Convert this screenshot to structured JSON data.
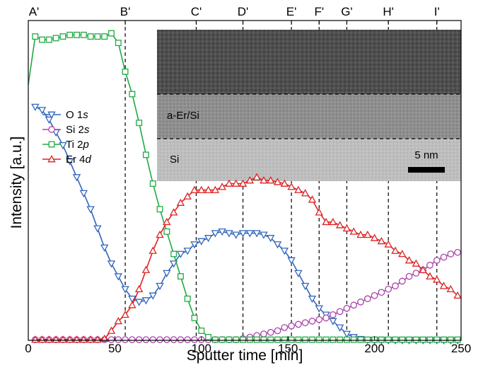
{
  "chart_data": {
    "type": "line",
    "xlabel": "Sputter time [min]",
    "ylabel": "Intensity [a.u.]",
    "xlim": [
      0,
      250
    ],
    "ylim": [
      0,
      1
    ],
    "x_ticks": [
      0,
      50,
      100,
      150,
      200,
      250
    ],
    "legend_position": "left",
    "grid": false,
    "top_markers": [
      {
        "label": "A'",
        "x": 0,
        "dashed": false
      },
      {
        "label": "B'",
        "x": 56,
        "dashed": true
      },
      {
        "label": "C'",
        "x": 97,
        "dashed": true
      },
      {
        "label": "D'",
        "x": 124,
        "dashed": true
      },
      {
        "label": "E'",
        "x": 152,
        "dashed": true
      },
      {
        "label": "F'",
        "x": 168,
        "dashed": true
      },
      {
        "label": "G'",
        "x": 184,
        "dashed": true
      },
      {
        "label": "H'",
        "x": 208,
        "dashed": true
      },
      {
        "label": "I'",
        "x": 236,
        "dashed": true
      }
    ],
    "series": [
      {
        "label_main": "O 1",
        "label_sub": "s",
        "color": "#3366bb",
        "marker": "triangle-down",
        "points": [
          [
            4,
            0.73
          ],
          [
            8,
            0.72
          ],
          [
            12,
            0.69
          ],
          [
            16,
            0.65
          ],
          [
            20,
            0.61
          ],
          [
            24,
            0.56
          ],
          [
            28,
            0.51
          ],
          [
            32,
            0.46
          ],
          [
            36,
            0.41
          ],
          [
            40,
            0.35
          ],
          [
            44,
            0.29
          ],
          [
            48,
            0.24
          ],
          [
            52,
            0.2
          ],
          [
            56,
            0.16
          ],
          [
            60,
            0.13
          ],
          [
            64,
            0.12
          ],
          [
            68,
            0.125
          ],
          [
            72,
            0.14
          ],
          [
            76,
            0.17
          ],
          [
            80,
            0.21
          ],
          [
            84,
            0.24
          ],
          [
            88,
            0.27
          ],
          [
            92,
            0.28
          ],
          [
            96,
            0.3
          ],
          [
            100,
            0.31
          ],
          [
            104,
            0.32
          ],
          [
            108,
            0.335
          ],
          [
            112,
            0.34
          ],
          [
            116,
            0.335
          ],
          [
            120,
            0.33
          ],
          [
            124,
            0.335
          ],
          [
            128,
            0.335
          ],
          [
            132,
            0.335
          ],
          [
            136,
            0.33
          ],
          [
            140,
            0.32
          ],
          [
            144,
            0.3
          ],
          [
            148,
            0.28
          ],
          [
            152,
            0.25
          ],
          [
            156,
            0.21
          ],
          [
            160,
            0.17
          ],
          [
            164,
            0.13
          ],
          [
            168,
            0.1
          ],
          [
            172,
            0.08
          ],
          [
            176,
            0.06
          ],
          [
            180,
            0.04
          ],
          [
            184,
            0.02
          ],
          [
            188,
            0.01
          ],
          [
            192,
            0.004
          ],
          [
            196,
            0.001
          ],
          [
            200,
            0.0
          ],
          [
            204,
            0.0
          ],
          [
            208,
            0.0
          ],
          [
            212,
            0.0
          ],
          [
            216,
            0.0
          ],
          [
            220,
            0.0
          ],
          [
            224,
            0.0
          ],
          [
            228,
            0.0
          ],
          [
            232,
            0.0
          ],
          [
            236,
            0.0
          ],
          [
            240,
            0.0
          ],
          [
            244,
            0.0
          ],
          [
            248,
            0.0
          ]
        ]
      },
      {
        "label_main": "Si 2",
        "label_sub": "s",
        "color": "#aa44aa",
        "marker": "circle",
        "points": [
          [
            4,
            0.002
          ],
          [
            8,
            0.002
          ],
          [
            12,
            0.002
          ],
          [
            16,
            0.002
          ],
          [
            20,
            0.002
          ],
          [
            24,
            0.002
          ],
          [
            28,
            0.002
          ],
          [
            32,
            0.002
          ],
          [
            36,
            0.002
          ],
          [
            40,
            0.002
          ],
          [
            44,
            0.002
          ],
          [
            48,
            0.002
          ],
          [
            52,
            0.002
          ],
          [
            56,
            0.002
          ],
          [
            60,
            0.002
          ],
          [
            64,
            0.002
          ],
          [
            68,
            0.002
          ],
          [
            72,
            0.002
          ],
          [
            76,
            0.002
          ],
          [
            80,
            0.002
          ],
          [
            84,
            0.002
          ],
          [
            88,
            0.002
          ],
          [
            92,
            0.002
          ],
          [
            96,
            0.002
          ],
          [
            100,
            0.002
          ],
          [
            104,
            0.002
          ],
          [
            108,
            0.002
          ],
          [
            112,
            0.002
          ],
          [
            116,
            0.002
          ],
          [
            120,
            0.002
          ],
          [
            124,
            0.005
          ],
          [
            128,
            0.01
          ],
          [
            132,
            0.015
          ],
          [
            136,
            0.02
          ],
          [
            140,
            0.025
          ],
          [
            144,
            0.03
          ],
          [
            148,
            0.04
          ],
          [
            152,
            0.045
          ],
          [
            156,
            0.05
          ],
          [
            160,
            0.055
          ],
          [
            164,
            0.06
          ],
          [
            168,
            0.065
          ],
          [
            172,
            0.07
          ],
          [
            176,
            0.08
          ],
          [
            180,
            0.09
          ],
          [
            184,
            0.1
          ],
          [
            188,
            0.11
          ],
          [
            192,
            0.12
          ],
          [
            196,
            0.13
          ],
          [
            200,
            0.14
          ],
          [
            204,
            0.15
          ],
          [
            208,
            0.16
          ],
          [
            212,
            0.17
          ],
          [
            216,
            0.185
          ],
          [
            220,
            0.2
          ],
          [
            224,
            0.21
          ],
          [
            228,
            0.22
          ],
          [
            232,
            0.235
          ],
          [
            236,
            0.25
          ],
          [
            240,
            0.26
          ],
          [
            244,
            0.27
          ],
          [
            248,
            0.275
          ]
        ]
      },
      {
        "label_main": "Ti 2",
        "label_sub": "p",
        "color": "#22aa44",
        "marker": "square",
        "points": [
          [
            0,
            0.8
          ],
          [
            4,
            0.95
          ],
          [
            8,
            0.94
          ],
          [
            12,
            0.94
          ],
          [
            16,
            0.945
          ],
          [
            20,
            0.95
          ],
          [
            24,
            0.955
          ],
          [
            28,
            0.955
          ],
          [
            32,
            0.955
          ],
          [
            36,
            0.95
          ],
          [
            40,
            0.95
          ],
          [
            44,
            0.95
          ],
          [
            48,
            0.96
          ],
          [
            52,
            0.93
          ],
          [
            56,
            0.84
          ],
          [
            60,
            0.77
          ],
          [
            64,
            0.68
          ],
          [
            68,
            0.58
          ],
          [
            72,
            0.49
          ],
          [
            76,
            0.41
          ],
          [
            80,
            0.34
          ],
          [
            84,
            0.27
          ],
          [
            88,
            0.2
          ],
          [
            92,
            0.13
          ],
          [
            96,
            0.07
          ],
          [
            100,
            0.03
          ],
          [
            104,
            0.01
          ],
          [
            108,
            0.002
          ],
          [
            112,
            0.002
          ],
          [
            116,
            0.002
          ],
          [
            120,
            0.002
          ],
          [
            124,
            0.002
          ],
          [
            128,
            0.002
          ],
          [
            132,
            0.002
          ],
          [
            136,
            0.002
          ],
          [
            140,
            0.002
          ],
          [
            144,
            0.002
          ],
          [
            148,
            0.002
          ],
          [
            152,
            0.002
          ],
          [
            156,
            0.002
          ],
          [
            160,
            0.002
          ],
          [
            164,
            0.002
          ],
          [
            168,
            0.002
          ],
          [
            172,
            0.002
          ],
          [
            176,
            0.002
          ],
          [
            180,
            0.002
          ],
          [
            184,
            0.002
          ],
          [
            188,
            0.002
          ],
          [
            192,
            0.002
          ],
          [
            196,
            0.002
          ],
          [
            200,
            0.002
          ],
          [
            204,
            0.002
          ],
          [
            208,
            0.002
          ],
          [
            212,
            0.002
          ],
          [
            216,
            0.002
          ],
          [
            220,
            0.002
          ],
          [
            224,
            0.002
          ],
          [
            228,
            0.002
          ],
          [
            232,
            0.002
          ],
          [
            236,
            0.002
          ],
          [
            240,
            0.002
          ],
          [
            244,
            0.002
          ],
          [
            248,
            0.002
          ]
        ]
      },
      {
        "label_main": "Er 4",
        "label_sub": "d",
        "color": "#dd2222",
        "marker": "triangle-up",
        "points": [
          [
            4,
            0.002
          ],
          [
            8,
            0.002
          ],
          [
            12,
            0.002
          ],
          [
            16,
            0.002
          ],
          [
            20,
            0.002
          ],
          [
            24,
            0.002
          ],
          [
            28,
            0.002
          ],
          [
            32,
            0.002
          ],
          [
            36,
            0.002
          ],
          [
            40,
            0.002
          ],
          [
            44,
            0.005
          ],
          [
            48,
            0.03
          ],
          [
            52,
            0.06
          ],
          [
            56,
            0.08
          ],
          [
            60,
            0.11
          ],
          [
            64,
            0.16
          ],
          [
            68,
            0.22
          ],
          [
            72,
            0.28
          ],
          [
            76,
            0.33
          ],
          [
            80,
            0.37
          ],
          [
            84,
            0.4
          ],
          [
            88,
            0.43
          ],
          [
            92,
            0.45
          ],
          [
            96,
            0.47
          ],
          [
            100,
            0.47
          ],
          [
            104,
            0.47
          ],
          [
            108,
            0.47
          ],
          [
            112,
            0.48
          ],
          [
            116,
            0.49
          ],
          [
            120,
            0.49
          ],
          [
            124,
            0.49
          ],
          [
            128,
            0.5
          ],
          [
            132,
            0.51
          ],
          [
            136,
            0.5
          ],
          [
            140,
            0.5
          ],
          [
            144,
            0.495
          ],
          [
            148,
            0.49
          ],
          [
            152,
            0.48
          ],
          [
            156,
            0.47
          ],
          [
            160,
            0.46
          ],
          [
            164,
            0.44
          ],
          [
            168,
            0.4
          ],
          [
            172,
            0.37
          ],
          [
            176,
            0.37
          ],
          [
            180,
            0.36
          ],
          [
            184,
            0.35
          ],
          [
            188,
            0.34
          ],
          [
            192,
            0.33
          ],
          [
            196,
            0.33
          ],
          [
            200,
            0.32
          ],
          [
            204,
            0.31
          ],
          [
            208,
            0.3
          ],
          [
            212,
            0.28
          ],
          [
            216,
            0.27
          ],
          [
            220,
            0.25
          ],
          [
            224,
            0.24
          ],
          [
            228,
            0.22
          ],
          [
            232,
            0.2
          ],
          [
            236,
            0.19
          ],
          [
            240,
            0.17
          ],
          [
            244,
            0.16
          ],
          [
            248,
            0.14
          ]
        ]
      }
    ],
    "inset": {
      "layer_labels": [
        "a-Er/Si",
        "Si"
      ],
      "scalebar_label": "5 nm",
      "colors": {
        "dark": "#4a4a4a",
        "mid": "#8e8e8e",
        "light": "#bdbdbd"
      }
    }
  }
}
